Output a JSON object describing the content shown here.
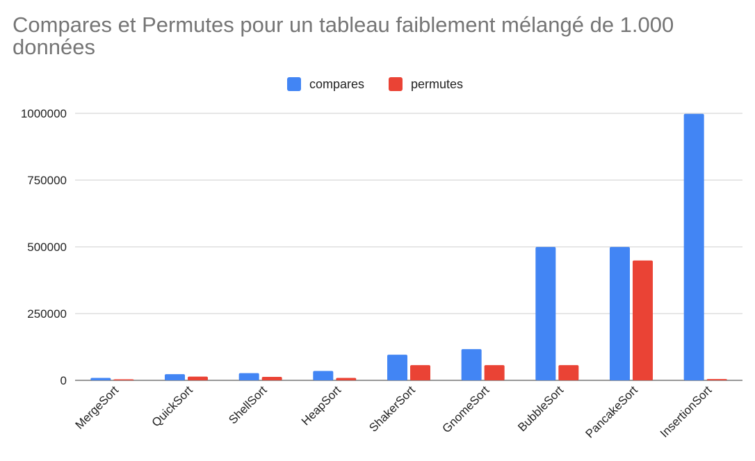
{
  "chart_data": {
    "type": "bar",
    "title": "Compares et Permutes pour un tableau faiblement mélangé de 1.000 données",
    "categories": [
      "MergeSort",
      "QuickSort",
      "ShellSort",
      "HeapSort",
      "ShakerSort",
      "GnomeSort",
      "BubbleSort",
      "PancakeSort",
      "InsertionSort"
    ],
    "series": [
      {
        "name": "compares",
        "color": "#4285f4",
        "values": [
          9000,
          23000,
          27000,
          35000,
          96000,
          117000,
          499500,
          499500,
          998000
        ]
      },
      {
        "name": "permutes",
        "color": "#ea4335",
        "values": [
          4000,
          14000,
          13000,
          9000,
          57000,
          57000,
          57000,
          449000,
          5000
        ]
      }
    ],
    "xlabel": "",
    "ylabel": "",
    "ylim": [
      0,
      1000000
    ],
    "yticks": [
      "0",
      "250000",
      "500000",
      "750000",
      "1000000"
    ],
    "grid": true,
    "legend_position": "top"
  }
}
